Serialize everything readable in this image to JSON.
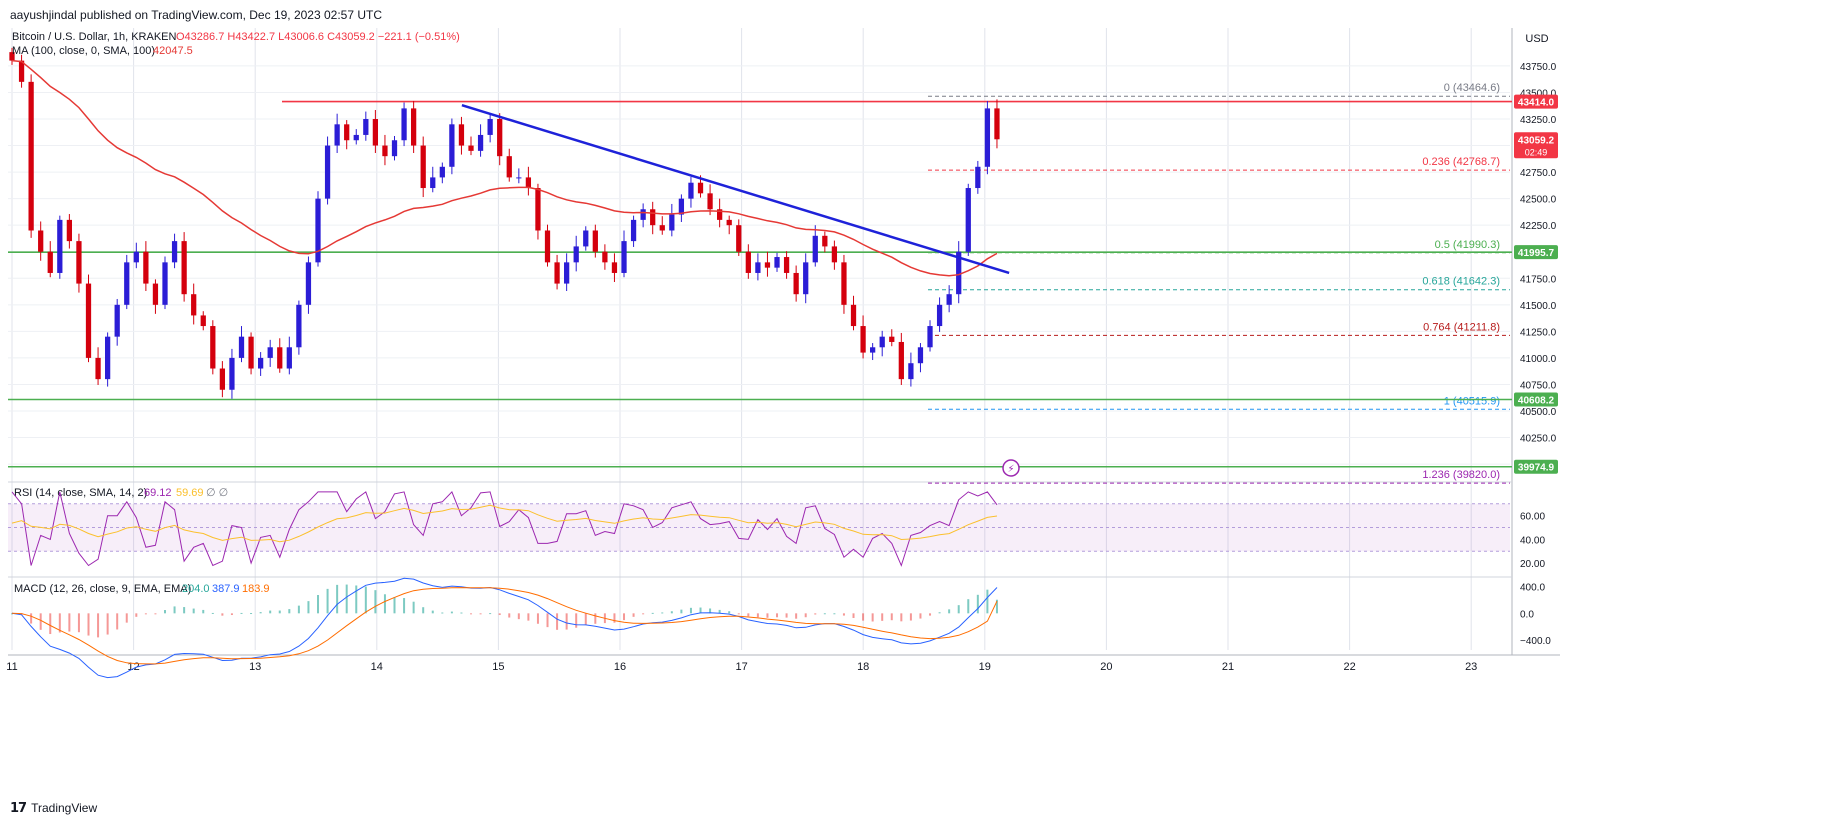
{
  "header": {
    "publisher_line": "aayushjindal published on TradingView.com, Dec 19, 2023 02:57 UTC",
    "symbol_line": "Bitcoin / U.S. Dollar, 1h, KRAKEN",
    "ohlc": {
      "o": "O43286.7",
      "h": "H43422.7",
      "l": "L43006.6",
      "c": "C43059.2",
      "change": "−221.1 (−0.51%)"
    },
    "ma_line_label": "MA (100, close, 0, SMA, 100)",
    "ma_value": "42047.5"
  },
  "price_axis": {
    "currency": "USD",
    "ticks": [
      "43750.0",
      "43500.0",
      "43250.0",
      "43000.0",
      "42750.0",
      "42500.0",
      "42250.0",
      "42000.0",
      "41750.0",
      "41500.0",
      "41250.0",
      "41000.0",
      "40750.0",
      "40500.0",
      "40250.0",
      "40000.0"
    ],
    "badges": [
      {
        "text": "43414.0",
        "sub": "",
        "color": "#f23645"
      },
      {
        "text": "43059.2",
        "sub": "02:49",
        "color": "#f23645"
      },
      {
        "text": "41995.7",
        "sub": "",
        "color": "#4caf50"
      },
      {
        "text": "40608.2",
        "sub": "",
        "color": "#4caf50"
      },
      {
        "text": "39974.9",
        "sub": "",
        "color": "#4caf50"
      }
    ]
  },
  "time_axis": {
    "labels": [
      "11",
      "12",
      "13",
      "14",
      "15",
      "16",
      "17",
      "18",
      "19",
      "20",
      "21",
      "22",
      "23"
    ]
  },
  "fib_labels": [
    {
      "level": "0",
      "value": "(43464.6)",
      "color": "#787b86"
    },
    {
      "level": "0.236",
      "value": "(42768.7)",
      "color": "#f23645"
    },
    {
      "level": "0.5",
      "value": "(41990.3)",
      "color": "#4caf50"
    },
    {
      "level": "0.618",
      "value": "(41642.3)",
      "color": "#26a69a"
    },
    {
      "level": "0.764",
      "value": "(41211.8)",
      "color": "#b71c1c"
    },
    {
      "level": "1",
      "value": "(40515.9)",
      "color": "#2196f3"
    },
    {
      "level": "1.236",
      "value": "(39820.0)",
      "color": "#9c27b0"
    }
  ],
  "rsi": {
    "label": "RSI (14, close, SMA, 14, 2)",
    "value1": "69.12",
    "value2": "59.69",
    "extra": "∅ ∅",
    "ticks": [
      "60.00",
      "40.00",
      "20.00"
    ]
  },
  "macd": {
    "label": "MACD (12, 26, close, 9, EMA, EMA)",
    "v1": "204.0",
    "v2": "387.9",
    "v3": "183.9",
    "ticks": [
      "400.0",
      "0.0",
      "−400.0"
    ]
  },
  "footer": {
    "brand": "TradingView"
  },
  "colors": {
    "bull": "#2b1dd6",
    "bear": "#d4000d",
    "ma": "#e53935",
    "trend": "#1e22d9",
    "resistance": "#f23645",
    "support": "#4caf50",
    "rsi": "#9c27b0",
    "rsi_ma": "#fbc02d",
    "macd": "#2962ff",
    "signal": "#ff6d00"
  },
  "chart_data": {
    "type": "candlestick",
    "title": "Bitcoin / U.S. Dollar, 1h, KRAKEN",
    "x": [
      "11",
      "12",
      "13",
      "14",
      "15",
      "16",
      "17",
      "18",
      "19",
      "20",
      "21",
      "22",
      "23"
    ],
    "ylim": [
      39850,
      43900
    ],
    "horizontal_levels": [
      {
        "name": "resistance",
        "value": 43414.0
      },
      {
        "name": "support",
        "value": 41995.7
      },
      {
        "name": "support",
        "value": 40608.2
      },
      {
        "name": "support",
        "value": 39974.9
      }
    ],
    "trendline": [
      {
        "x": "14.7",
        "y": 43380
      },
      {
        "x": "19.2",
        "y": 41800
      }
    ],
    "closes": [
      43800,
      43600,
      42200,
      42000,
      41800,
      42300,
      42100,
      41700,
      41000,
      40800,
      41200,
      41500,
      41900,
      42000,
      41700,
      41500,
      41900,
      42100,
      41600,
      41400,
      41300,
      40900,
      40700,
      41000,
      41200,
      40900,
      41000,
      41100,
      40900,
      41100,
      41500,
      41900,
      42500,
      43000,
      43200,
      43050,
      43100,
      43250,
      43000,
      42900,
      43050,
      43350,
      43000,
      42600,
      42700,
      42800,
      43200,
      43000,
      42950,
      43100,
      43250,
      42900,
      42700,
      42700,
      42600,
      42200,
      41900,
      41700,
      41900,
      42050,
      42200,
      42000,
      41900,
      41800,
      42100,
      42300,
      42400,
      42250,
      42200,
      42350,
      42500,
      42650,
      42550,
      42400,
      42300,
      42250,
      42000,
      41800,
      41900,
      41850,
      41950,
      41800,
      41600,
      41900,
      42150,
      42050,
      41900,
      41500,
      41300,
      41050,
      41100,
      41200,
      41150,
      40800,
      40950,
      41100,
      41300,
      41500,
      41600,
      42000,
      42600,
      42800,
      43350,
      43059
    ],
    "rsi_ma_last": 59.69,
    "rsi_last": 69.12,
    "macd_last": 387.9,
    "signal_last": 183.9,
    "hist_last": 204.0
  }
}
